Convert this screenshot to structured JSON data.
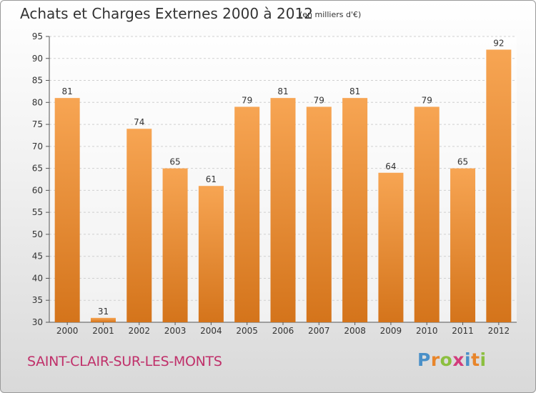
{
  "header": {
    "title": "Achats et Charges Externes 2000 à 2012",
    "unit": "(en milliers d'€)"
  },
  "footer": {
    "place": "SAINT-CLAIR-SUR-LES-MONTS",
    "logo_letters": [
      "P",
      "r",
      "o",
      "x",
      "i",
      "t",
      "i"
    ],
    "logo_colors": [
      "#4a90c8",
      "#e8852a",
      "#8cbf3f",
      "#d23c7c",
      "#4a90c8",
      "#e8852a",
      "#8cbf3f"
    ]
  },
  "colors": {
    "bar_light": "#f7a553",
    "bar_dark": "#d4741b",
    "grid": "#d0d0d0",
    "axis": "#555555"
  },
  "chart_data": {
    "type": "bar",
    "categories": [
      "2000",
      "2001",
      "2002",
      "2003",
      "2004",
      "2005",
      "2006",
      "2007",
      "2008",
      "2009",
      "2010",
      "2011",
      "2012"
    ],
    "values": [
      81,
      31,
      74,
      65,
      61,
      79,
      81,
      79,
      81,
      64,
      79,
      65,
      92
    ],
    "ylim": [
      30,
      95
    ],
    "yticks": [
      30,
      35,
      40,
      45,
      50,
      55,
      60,
      65,
      70,
      75,
      80,
      85,
      90,
      95
    ],
    "grid": true,
    "title": "Achats et Charges Externes 2000 à 2012",
    "xlabel": "",
    "ylabel": ""
  }
}
